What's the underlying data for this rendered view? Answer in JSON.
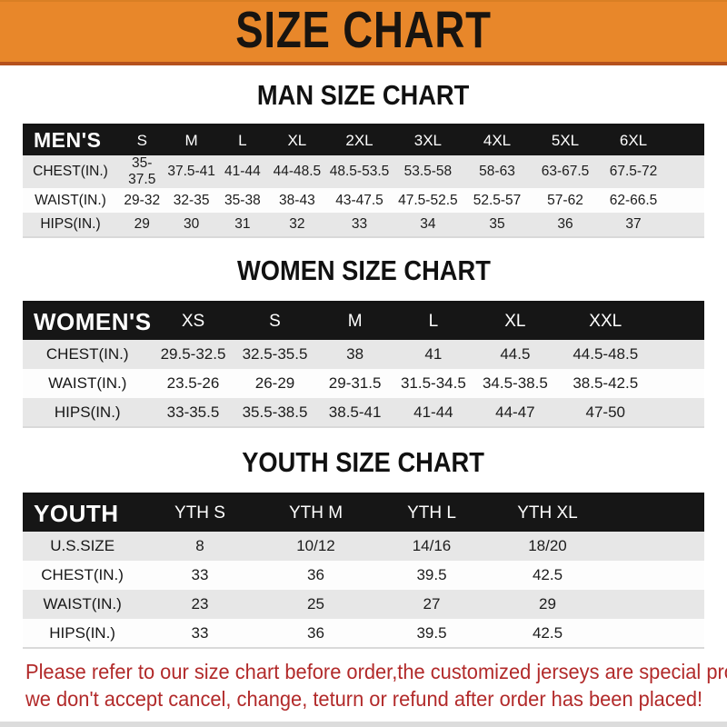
{
  "banner": {
    "title": "SIZE CHART",
    "bg_color": "#e8872a",
    "border_color": "#b5511d",
    "text_color": "#181410"
  },
  "colors": {
    "table_header_bg": "#161616",
    "table_header_text": "#ffffff",
    "stripe_row_bg": "#e7e7e7",
    "notice_text": "#b22a2a"
  },
  "sections": [
    {
      "title": "MAN SIZE CHART",
      "table": {
        "group_label": "MEN'S",
        "columns": [
          "S",
          "M",
          "L",
          "XL",
          "2XL",
          "3XL",
          "4XL",
          "5XL",
          "6XL"
        ],
        "rows": [
          {
            "label": "CHEST(IN.)",
            "values": [
              "35-37.5",
              "37.5-41",
              "41-44",
              "44-48.5",
              "48.5-53.5",
              "53.5-58",
              "58-63",
              "63-67.5",
              "67.5-72"
            ]
          },
          {
            "label": "WAIST(IN.)",
            "values": [
              "29-32",
              "32-35",
              "35-38",
              "38-43",
              "43-47.5",
              "47.5-52.5",
              "52.5-57",
              "57-62",
              "62-66.5"
            ]
          },
          {
            "label": "HIPS(IN.)",
            "values": [
              "29",
              "30",
              "31",
              "32",
              "33",
              "34",
              "35",
              "36",
              "37"
            ]
          }
        ]
      }
    },
    {
      "title": "WOMEN SIZE CHART",
      "table": {
        "group_label": "WOMEN'S",
        "columns": [
          "XS",
          "S",
          "M",
          "L",
          "XL",
          "XXL"
        ],
        "rows": [
          {
            "label": "CHEST(IN.)",
            "values": [
              "29.5-32.5",
              "32.5-35.5",
              "38",
              "41",
              "44.5",
              "44.5-48.5"
            ]
          },
          {
            "label": "WAIST(IN.)",
            "values": [
              "23.5-26",
              "26-29",
              "29-31.5",
              "31.5-34.5",
              "34.5-38.5",
              "38.5-42.5"
            ]
          },
          {
            "label": "HIPS(IN.)",
            "values": [
              "33-35.5",
              "35.5-38.5",
              "38.5-41",
              "41-44",
              "44-47",
              "47-50"
            ]
          }
        ]
      }
    },
    {
      "title": "YOUTH SIZE CHART",
      "table": {
        "group_label": "YOUTH",
        "columns": [
          "YTH S",
          "YTH M",
          "YTH L",
          "YTH XL"
        ],
        "rows": [
          {
            "label": "U.S.SIZE",
            "values": [
              "8",
              "10/12",
              "14/16",
              "18/20"
            ]
          },
          {
            "label": "CHEST(IN.)",
            "values": [
              "33",
              "36",
              "39.5",
              "42.5"
            ]
          },
          {
            "label": "WAIST(IN.)",
            "values": [
              "23",
              "25",
              "27",
              "29"
            ]
          },
          {
            "label": "HIPS(IN.)",
            "values": [
              "33",
              "36",
              "39.5",
              "42.5"
            ]
          }
        ]
      }
    }
  ],
  "footer": {
    "line1": "Please refer to our size chart before order,the customized jerseys are special products,",
    "line2": "we don't accept cancel, change, teturn or refund after order has been placed!"
  }
}
